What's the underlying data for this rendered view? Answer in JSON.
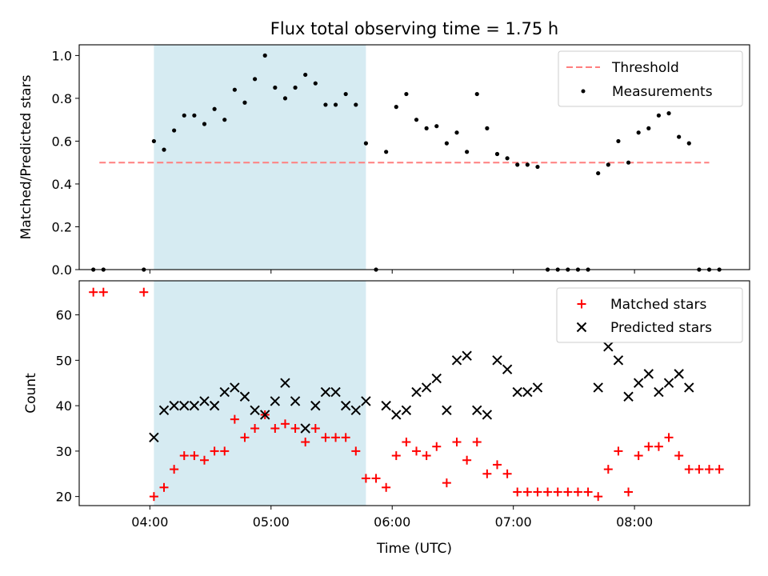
{
  "title": "Flux total observing time = 1.75 h",
  "colors": {
    "threshold": "#ff7f7f",
    "measurement": "#000000",
    "matched": "#ff0000",
    "predicted": "#000000",
    "shade": "#add8e6"
  },
  "chart_data": [
    {
      "type": "scatter",
      "panel": "top",
      "ylabel": "Matched/Predicted stars",
      "xlabel": "",
      "xlim": [
        "03:25",
        "08:57"
      ],
      "ylim": [
        0,
        1.05
      ],
      "yticks": [
        0.0,
        0.2,
        0.4,
        0.6,
        0.8,
        1.0
      ],
      "yticklabels": [
        "0.0",
        "0.2",
        "0.4",
        "0.6",
        "0.8",
        "1.0"
      ],
      "xticks": [
        "04:00",
        "05:00",
        "06:00",
        "07:00",
        "08:00"
      ],
      "shaded_region": [
        "04:02",
        "05:47"
      ],
      "legend": {
        "position": "top-right",
        "entries": [
          "Threshold",
          "Measurements"
        ]
      },
      "threshold": {
        "name": "Threshold",
        "value": 0.5,
        "x_start": "03:35",
        "x_end": "08:37"
      },
      "measurements": {
        "name": "Measurements",
        "points": [
          [
            "03:32",
            0.0
          ],
          [
            "03:37",
            0.0
          ],
          [
            "03:57",
            0.0
          ],
          [
            "04:02",
            0.6
          ],
          [
            "04:07",
            0.56
          ],
          [
            "04:12",
            0.65
          ],
          [
            "04:17",
            0.72
          ],
          [
            "04:22",
            0.72
          ],
          [
            "04:27",
            0.68
          ],
          [
            "04:32",
            0.75
          ],
          [
            "04:37",
            0.7
          ],
          [
            "04:42",
            0.84
          ],
          [
            "04:47",
            0.78
          ],
          [
            "04:52",
            0.89
          ],
          [
            "04:57",
            1.0
          ],
          [
            "05:02",
            0.85
          ],
          [
            "05:07",
            0.8
          ],
          [
            "05:12",
            0.85
          ],
          [
            "05:17",
            0.91
          ],
          [
            "05:22",
            0.87
          ],
          [
            "05:27",
            0.77
          ],
          [
            "05:32",
            0.77
          ],
          [
            "05:37",
            0.82
          ],
          [
            "05:42",
            0.77
          ],
          [
            "05:47",
            0.59
          ],
          [
            "05:52",
            0.0
          ],
          [
            "05:57",
            0.55
          ],
          [
            "06:02",
            0.76
          ],
          [
            "06:07",
            0.82
          ],
          [
            "06:12",
            0.7
          ],
          [
            "06:17",
            0.66
          ],
          [
            "06:22",
            0.67
          ],
          [
            "06:27",
            0.59
          ],
          [
            "06:32",
            0.64
          ],
          [
            "06:37",
            0.55
          ],
          [
            "06:42",
            0.82
          ],
          [
            "06:47",
            0.66
          ],
          [
            "06:52",
            0.54
          ],
          [
            "06:57",
            0.52
          ],
          [
            "07:02",
            0.49
          ],
          [
            "07:07",
            0.49
          ],
          [
            "07:12",
            0.48
          ],
          [
            "07:17",
            0.0
          ],
          [
            "07:22",
            0.0
          ],
          [
            "07:27",
            0.0
          ],
          [
            "07:32",
            0.0
          ],
          [
            "07:37",
            0.0
          ],
          [
            "07:42",
            0.45
          ],
          [
            "07:47",
            0.49
          ],
          [
            "07:52",
            0.6
          ],
          [
            "07:57",
            0.5
          ],
          [
            "08:02",
            0.64
          ],
          [
            "08:07",
            0.66
          ],
          [
            "08:12",
            0.72
          ],
          [
            "08:17",
            0.73
          ],
          [
            "08:22",
            0.62
          ],
          [
            "08:27",
            0.59
          ],
          [
            "08:32",
            0.0
          ],
          [
            "08:37",
            0.0
          ],
          [
            "08:42",
            0.0
          ]
        ]
      }
    },
    {
      "type": "scatter",
      "panel": "bottom",
      "ylabel": "Count",
      "xlabel": "Time (UTC)",
      "xlim": [
        "03:25",
        "08:57"
      ],
      "ylim": [
        18,
        67.5
      ],
      "yticks": [
        20,
        30,
        40,
        50,
        60
      ],
      "yticklabels": [
        "20",
        "30",
        "40",
        "50",
        "60"
      ],
      "xticks": [
        "04:00",
        "05:00",
        "06:00",
        "07:00",
        "08:00"
      ],
      "xticklabels": [
        "04:00",
        "05:00",
        "06:00",
        "07:00",
        "08:00"
      ],
      "shaded_region": [
        "04:02",
        "05:47"
      ],
      "legend": {
        "position": "top-right",
        "entries": [
          "Matched stars",
          "Predicted stars"
        ]
      },
      "series": [
        {
          "name": "Matched stars",
          "marker": "+",
          "points": [
            [
              "03:32",
              65
            ],
            [
              "03:37",
              65
            ],
            [
              "03:57",
              65
            ],
            [
              "04:02",
              20
            ],
            [
              "04:07",
              22
            ],
            [
              "04:12",
              26
            ],
            [
              "04:17",
              29
            ],
            [
              "04:22",
              29
            ],
            [
              "04:27",
              28
            ],
            [
              "04:32",
              30
            ],
            [
              "04:37",
              30
            ],
            [
              "04:42",
              37
            ],
            [
              "04:47",
              33
            ],
            [
              "04:52",
              35
            ],
            [
              "04:57",
              38
            ],
            [
              "05:02",
              35
            ],
            [
              "05:07",
              36
            ],
            [
              "05:12",
              35
            ],
            [
              "05:17",
              32
            ],
            [
              "05:22",
              35
            ],
            [
              "05:27",
              33
            ],
            [
              "05:32",
              33
            ],
            [
              "05:37",
              33
            ],
            [
              "05:42",
              30
            ],
            [
              "05:47",
              24
            ],
            [
              "05:52",
              24
            ],
            [
              "05:57",
              22
            ],
            [
              "06:02",
              29
            ],
            [
              "06:07",
              32
            ],
            [
              "06:12",
              30
            ],
            [
              "06:17",
              29
            ],
            [
              "06:22",
              31
            ],
            [
              "06:27",
              23
            ],
            [
              "06:32",
              32
            ],
            [
              "06:37",
              28
            ],
            [
              "06:42",
              32
            ],
            [
              "06:47",
              25
            ],
            [
              "06:52",
              27
            ],
            [
              "06:57",
              25
            ],
            [
              "07:02",
              21
            ],
            [
              "07:07",
              21
            ],
            [
              "07:12",
              21
            ],
            [
              "07:17",
              21
            ],
            [
              "07:22",
              21
            ],
            [
              "07:27",
              21
            ],
            [
              "07:32",
              21
            ],
            [
              "07:37",
              21
            ],
            [
              "07:42",
              20
            ],
            [
              "07:47",
              26
            ],
            [
              "07:52",
              30
            ],
            [
              "07:57",
              21
            ],
            [
              "08:02",
              29
            ],
            [
              "08:07",
              31
            ],
            [
              "08:12",
              31
            ],
            [
              "08:17",
              33
            ],
            [
              "08:22",
              29
            ],
            [
              "08:27",
              26
            ],
            [
              "08:32",
              26
            ],
            [
              "08:37",
              26
            ],
            [
              "08:42",
              26
            ]
          ]
        },
        {
          "name": "Predicted stars",
          "marker": "x",
          "points": [
            [
              "04:02",
              33
            ],
            [
              "04:07",
              39
            ],
            [
              "04:12",
              40
            ],
            [
              "04:17",
              40
            ],
            [
              "04:22",
              40
            ],
            [
              "04:27",
              41
            ],
            [
              "04:32",
              40
            ],
            [
              "04:37",
              43
            ],
            [
              "04:42",
              44
            ],
            [
              "04:47",
              42
            ],
            [
              "04:52",
              39
            ],
            [
              "04:57",
              38
            ],
            [
              "05:02",
              41
            ],
            [
              "05:07",
              45
            ],
            [
              "05:12",
              41
            ],
            [
              "05:17",
              35
            ],
            [
              "05:22",
              40
            ],
            [
              "05:27",
              43
            ],
            [
              "05:32",
              43
            ],
            [
              "05:37",
              40
            ],
            [
              "05:42",
              39
            ],
            [
              "05:47",
              41
            ],
            [
              "05:57",
              40
            ],
            [
              "06:02",
              38
            ],
            [
              "06:07",
              39
            ],
            [
              "06:12",
              43
            ],
            [
              "06:17",
              44
            ],
            [
              "06:22",
              46
            ],
            [
              "06:27",
              39
            ],
            [
              "06:32",
              50
            ],
            [
              "06:37",
              51
            ],
            [
              "06:42",
              39
            ],
            [
              "06:47",
              38
            ],
            [
              "06:52",
              50
            ],
            [
              "06:57",
              48
            ],
            [
              "07:02",
              43
            ],
            [
              "07:07",
              43
            ],
            [
              "07:12",
              44
            ],
            [
              "07:42",
              44
            ],
            [
              "07:47",
              53
            ],
            [
              "07:52",
              50
            ],
            [
              "07:57",
              42
            ],
            [
              "08:02",
              45
            ],
            [
              "08:07",
              47
            ],
            [
              "08:12",
              43
            ],
            [
              "08:17",
              45
            ],
            [
              "08:22",
              47
            ],
            [
              "08:27",
              44
            ]
          ]
        }
      ]
    }
  ]
}
